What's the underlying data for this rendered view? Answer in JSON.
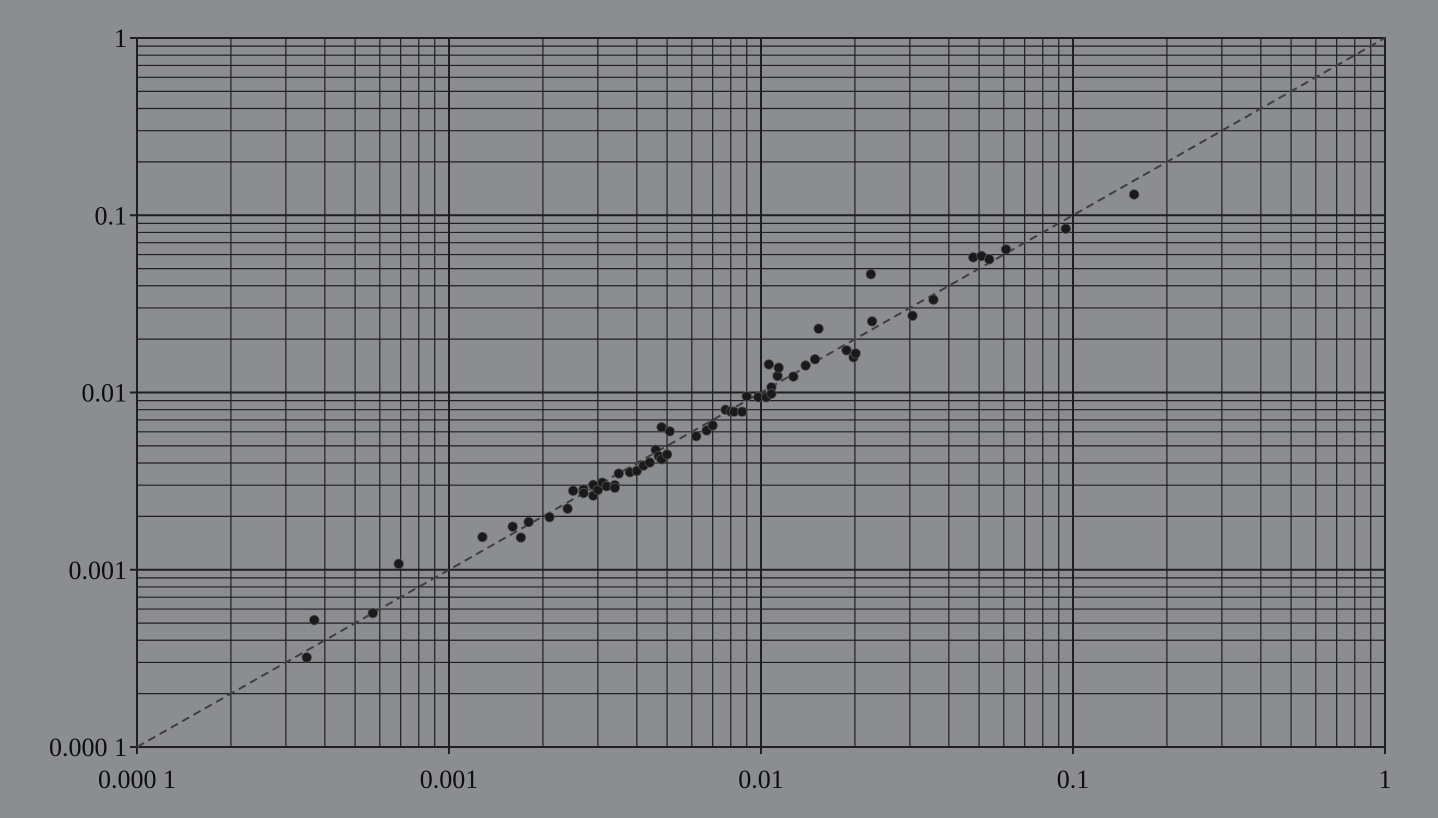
{
  "chart_data": {
    "type": "scatter",
    "title": "",
    "xlabel": "",
    "ylabel": "",
    "x_scale": "log",
    "y_scale": "log",
    "xlim": [
      0.0001,
      1
    ],
    "ylim": [
      0.0001,
      1
    ],
    "grid": true,
    "x_tick_labels": [
      "0.000 1",
      "0.001",
      "0.01",
      "0.1",
      "1"
    ],
    "y_tick_labels": [
      "0.000 1",
      "0.001",
      "0.01",
      "0.1",
      "1"
    ],
    "reference_line": {
      "style": "dashed",
      "from": [
        0.0001,
        0.0001
      ],
      "to": [
        1,
        1
      ]
    },
    "colors": {
      "background": "#8c8d90",
      "grid": "#1f1f1f",
      "points": "#1a1a1a",
      "reference_line": "#3f3f3f",
      "text": "#0d0d0d"
    },
    "points": [
      [
        0.00035,
        0.00032
      ],
      [
        0.00037,
        0.00052
      ],
      [
        0.00057,
        0.00057
      ],
      [
        0.00069,
        0.00108
      ],
      [
        0.00128,
        0.00153
      ],
      [
        0.0016,
        0.00175
      ],
      [
        0.0017,
        0.00152
      ],
      [
        0.0018,
        0.00186
      ],
      [
        0.0021,
        0.00198
      ],
      [
        0.0024,
        0.00221
      ],
      [
        0.0025,
        0.00279
      ],
      [
        0.0027,
        0.00284
      ],
      [
        0.0027,
        0.00271
      ],
      [
        0.0029,
        0.00301
      ],
      [
        0.0029,
        0.00262
      ],
      [
        0.003,
        0.00282
      ],
      [
        0.0031,
        0.0031
      ],
      [
        0.0032,
        0.00296
      ],
      [
        0.0034,
        0.003
      ],
      [
        0.0034,
        0.0029
      ],
      [
        0.0035,
        0.00349
      ],
      [
        0.0038,
        0.00355
      ],
      [
        0.004,
        0.00361
      ],
      [
        0.0042,
        0.00387
      ],
      [
        0.0044,
        0.00403
      ],
      [
        0.0046,
        0.00475
      ],
      [
        0.0047,
        0.00438
      ],
      [
        0.0048,
        0.0042
      ],
      [
        0.0048,
        0.00637
      ],
      [
        0.005,
        0.00447
      ],
      [
        0.0051,
        0.00604
      ],
      [
        0.0062,
        0.00567
      ],
      [
        0.0067,
        0.00611
      ],
      [
        0.007,
        0.00652
      ],
      [
        0.0077,
        0.00799
      ],
      [
        0.008,
        0.00782
      ],
      [
        0.0082,
        0.00779
      ],
      [
        0.0087,
        0.00779
      ],
      [
        0.009,
        0.00952
      ],
      [
        0.0098,
        0.00941
      ],
      [
        0.0104,
        0.0094
      ],
      [
        0.0106,
        0.0144
      ],
      [
        0.0108,
        0.0107
      ],
      [
        0.0108,
        0.00984
      ],
      [
        0.0113,
        0.0124
      ],
      [
        0.0114,
        0.0138
      ],
      [
        0.0127,
        0.0123
      ],
      [
        0.0139,
        0.0142
      ],
      [
        0.0149,
        0.0154
      ],
      [
        0.0153,
        0.0229
      ],
      [
        0.0188,
        0.0173
      ],
      [
        0.0198,
        0.0158
      ],
      [
        0.0201,
        0.0166
      ],
      [
        0.0225,
        0.0465
      ],
      [
        0.0227,
        0.0252
      ],
      [
        0.0306,
        0.0271
      ],
      [
        0.0357,
        0.0334
      ],
      [
        0.0479,
        0.0579
      ],
      [
        0.0509,
        0.0589
      ],
      [
        0.0539,
        0.0564
      ],
      [
        0.061,
        0.0642
      ],
      [
        0.0948,
        0.0839
      ],
      [
        0.157,
        0.131
      ]
    ]
  }
}
